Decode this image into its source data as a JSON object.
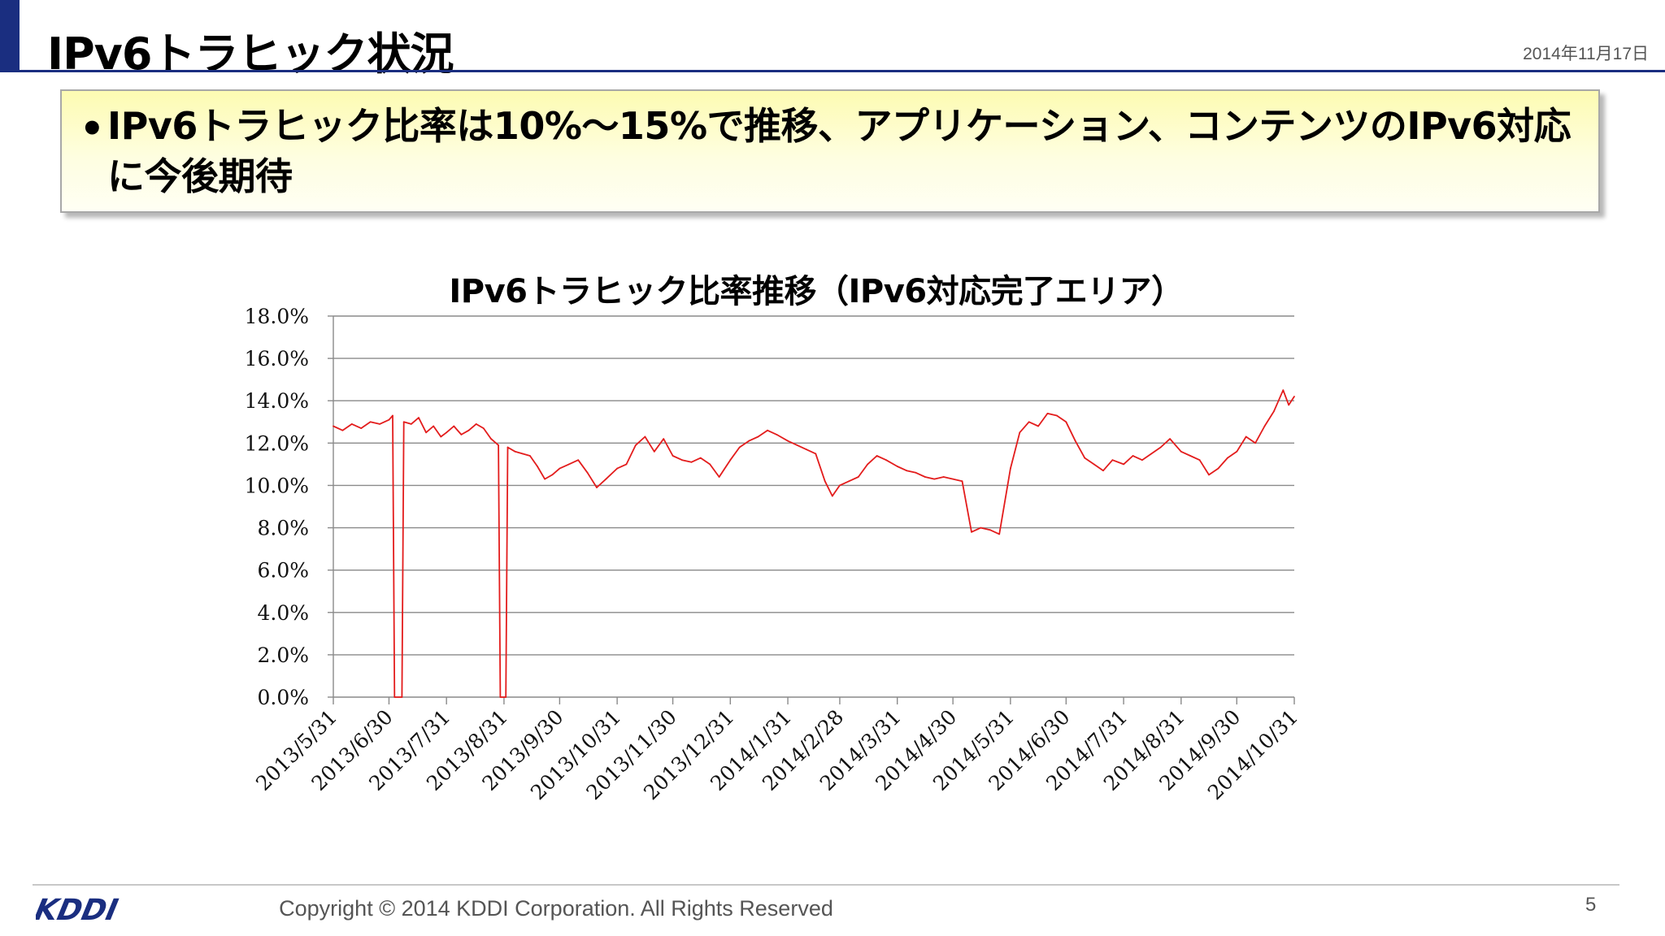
{
  "slide": {
    "title": "IPv6トラヒック状況",
    "date": "2014年11月17日",
    "page_number": "5",
    "copyright": "Copyright © 2014 KDDI Corporation. All Rights Reserved",
    "logo_text": "KDDI",
    "colors": {
      "accent": "#1a2e80",
      "line": "#e31c1c",
      "callout": "#fdfbb2"
    }
  },
  "callout": {
    "bullet": "•",
    "text": "IPv6トラヒック比率は10%～15%で推移、アプリケーション、コンテンツのIPv6対応に今後期待"
  },
  "chart_data": {
    "type": "line",
    "title": "IPv6トラヒック比率推移（IPv6対応完了エリア）",
    "xlabel": "",
    "ylabel": "",
    "ylim": [
      0,
      18
    ],
    "y_tick_labels": [
      "0.0%",
      "2.0%",
      "4.0%",
      "6.0%",
      "8.0%",
      "10.0%",
      "12.0%",
      "14.0%",
      "16.0%",
      "18.0%"
    ],
    "x_tick_labels": [
      "2013/5/31",
      "2013/6/30",
      "2013/7/31",
      "2013/8/31",
      "2013/9/30",
      "2013/10/31",
      "2013/11/30",
      "2013/12/31",
      "2014/1/31",
      "2014/2/28",
      "2014/3/31",
      "2014/4/30",
      "2014/5/31",
      "2014/6/30",
      "2014/7/31",
      "2014/8/31",
      "2014/9/30",
      "2014/10/31"
    ],
    "grid": true,
    "series": [
      {
        "color": "#e31c1c",
        "x": [
          "2013/5/31",
          "2013/6/5",
          "2013/6/10",
          "2013/6/15",
          "2013/6/20",
          "2013/6/25",
          "2013/6/30",
          "2013/7/2",
          "2013/7/3",
          "2013/7/7",
          "2013/7/8",
          "2013/7/12",
          "2013/7/16",
          "2013/7/20",
          "2013/7/24",
          "2013/7/28",
          "2013/7/31",
          "2013/8/4",
          "2013/8/8",
          "2013/8/12",
          "2013/8/16",
          "2013/8/20",
          "2013/8/24",
          "2013/8/28",
          "2013/8/29",
          "2013/9/1",
          "2013/9/2",
          "2013/9/6",
          "2013/9/10",
          "2013/9/14",
          "2013/9/18",
          "2013/9/22",
          "2013/9/26",
          "2013/9/30",
          "2013/10/5",
          "2013/10/10",
          "2013/10/15",
          "2013/10/20",
          "2013/10/25",
          "2013/10/31",
          "2013/11/5",
          "2013/11/10",
          "2013/11/15",
          "2013/11/20",
          "2013/11/25",
          "2013/11/30",
          "2013/12/5",
          "2013/12/10",
          "2013/12/15",
          "2013/12/20",
          "2013/12/25",
          "2013/12/31",
          "2014/1/5",
          "2014/1/10",
          "2014/1/15",
          "2014/1/20",
          "2014/1/25",
          "2014/1/31",
          "2014/2/5",
          "2014/2/10",
          "2014/2/15",
          "2014/2/20",
          "2014/2/24",
          "2014/2/28",
          "2014/3/5",
          "2014/3/10",
          "2014/3/15",
          "2014/3/20",
          "2014/3/25",
          "2014/3/31",
          "2014/4/5",
          "2014/4/10",
          "2014/4/15",
          "2014/4/20",
          "2014/4/25",
          "2014/4/30",
          "2014/5/5",
          "2014/5/10",
          "2014/5/15",
          "2014/5/20",
          "2014/5/25",
          "2014/5/31",
          "2014/6/5",
          "2014/6/10",
          "2014/6/15",
          "2014/6/20",
          "2014/6/25",
          "2014/6/30",
          "2014/7/5",
          "2014/7/10",
          "2014/7/15",
          "2014/7/20",
          "2014/7/25",
          "2014/7/31",
          "2014/8/5",
          "2014/8/10",
          "2014/8/15",
          "2014/8/20",
          "2014/8/25",
          "2014/8/31",
          "2014/9/5",
          "2014/9/10",
          "2014/9/15",
          "2014/9/20",
          "2014/9/25",
          "2014/9/30",
          "2014/10/5",
          "2014/10/10",
          "2014/10/15",
          "2014/10/20",
          "2014/10/25",
          "2014/10/28",
          "2014/10/31"
        ],
        "y": [
          12.8,
          12.6,
          12.9,
          12.7,
          13.0,
          12.9,
          13.1,
          13.3,
          0.0,
          0.0,
          13.0,
          12.9,
          13.2,
          12.5,
          12.8,
          12.3,
          12.5,
          12.8,
          12.4,
          12.6,
          12.9,
          12.7,
          12.2,
          11.9,
          0.0,
          0.0,
          11.8,
          11.6,
          11.5,
          11.4,
          10.9,
          10.3,
          10.5,
          10.8,
          11.0,
          11.2,
          10.6,
          9.9,
          10.3,
          10.8,
          11.0,
          11.9,
          12.3,
          11.6,
          12.2,
          11.4,
          11.2,
          11.1,
          11.3,
          11.0,
          10.4,
          11.2,
          11.8,
          12.1,
          12.3,
          12.6,
          12.4,
          12.1,
          11.9,
          11.7,
          11.5,
          10.2,
          9.5,
          10.0,
          10.2,
          10.4,
          11.0,
          11.4,
          11.2,
          10.9,
          10.7,
          10.6,
          10.4,
          10.3,
          10.4,
          10.3,
          10.2,
          7.8,
          8.0,
          7.9,
          7.7,
          10.8,
          12.5,
          13.0,
          12.8,
          13.4,
          13.3,
          13.0,
          12.1,
          11.3,
          11.0,
          10.7,
          11.2,
          11.0,
          11.4,
          11.2,
          11.5,
          11.8,
          12.2,
          11.6,
          11.4,
          11.2,
          10.5,
          10.8,
          11.3,
          11.6,
          12.3,
          12.0,
          12.8,
          13.5,
          14.5,
          13.8,
          14.2
        ]
      }
    ]
  }
}
